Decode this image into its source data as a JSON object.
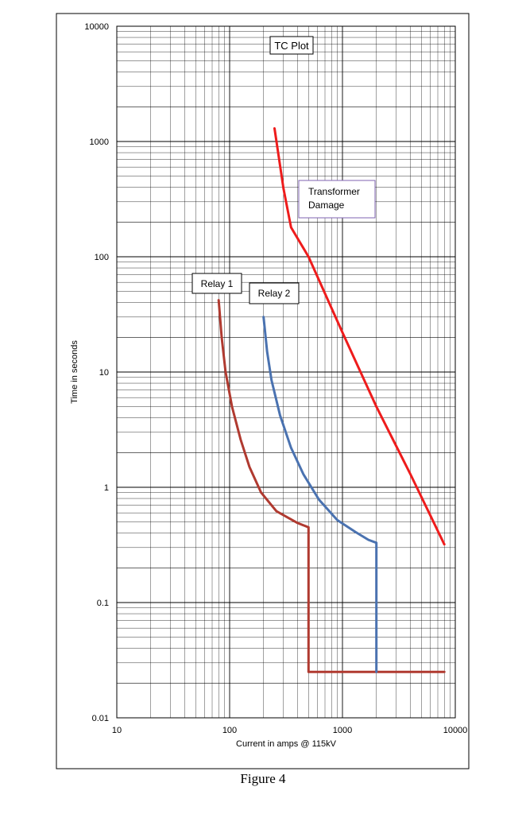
{
  "chart_data": {
    "type": "line",
    "title": "TC Plot",
    "xlabel": "Current in amps @ 115kV",
    "ylabel": "Time in seconds",
    "x_scale": "log",
    "y_scale": "log",
    "xlim": [
      10,
      10000
    ],
    "ylim": [
      0.01,
      10000
    ],
    "x_ticks": [
      10,
      100,
      1000,
      10000
    ],
    "y_ticks": [
      0.01,
      0.1,
      1,
      10,
      100,
      1000,
      10000
    ],
    "x_tick_labels": [
      "10",
      "100",
      "1000",
      "10000"
    ],
    "y_tick_labels": [
      "0.01",
      "0.1",
      "1",
      "10",
      "100",
      "1000",
      "10000"
    ],
    "grid": true,
    "series": [
      {
        "name": "Relay 1",
        "color": "#b03a30",
        "points": [
          [
            80,
            42
          ],
          [
            85,
            20
          ],
          [
            92,
            10
          ],
          [
            105,
            5
          ],
          [
            125,
            2.6
          ],
          [
            150,
            1.5
          ],
          [
            190,
            0.9
          ],
          [
            260,
            0.62
          ],
          [
            400,
            0.49
          ],
          [
            500,
            0.45
          ],
          [
            500,
            0.025
          ],
          [
            8000,
            0.025
          ]
        ]
      },
      {
        "name": "Relay 2",
        "color": "#4a72b0",
        "points": [
          [
            200,
            30
          ],
          [
            215,
            15
          ],
          [
            235,
            8.5
          ],
          [
            280,
            4.2
          ],
          [
            350,
            2.2
          ],
          [
            450,
            1.3
          ],
          [
            620,
            0.78
          ],
          [
            900,
            0.52
          ],
          [
            1300,
            0.41
          ],
          [
            1700,
            0.35
          ],
          [
            2000,
            0.33
          ],
          [
            2000,
            0.025
          ]
        ]
      },
      {
        "name": "Transformer Damage",
        "color": "#ee1c1c",
        "points": [
          [
            250,
            1300
          ],
          [
            300,
            390
          ],
          [
            350,
            180
          ],
          [
            500,
            100
          ],
          [
            1000,
            22
          ],
          [
            2000,
            5
          ],
          [
            4000,
            1.3
          ],
          [
            8000,
            0.32
          ]
        ]
      }
    ],
    "annotations": [
      "TC Plot",
      "Transformer Damage",
      "Relay 1",
      "Relay 2"
    ]
  },
  "caption": "Figure 4"
}
